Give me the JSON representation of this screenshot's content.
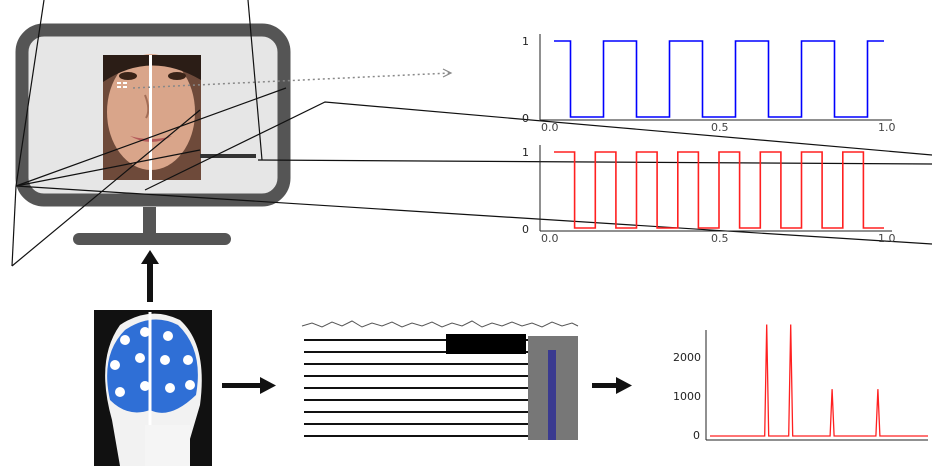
{
  "stimuli": {
    "top_signal": {
      "color": "#0000ff",
      "y_ticks": [
        "1",
        "0"
      ],
      "x_ticks": [
        "0.0",
        "0.5",
        "1.0"
      ]
    },
    "bottom_signal": {
      "color": "#ff2020",
      "y_ticks": [
        "1",
        "0"
      ],
      "x_ticks": [
        "0.0",
        "0.5",
        "1.0"
      ]
    }
  },
  "chart_data": [
    {
      "type": "line",
      "x": [
        0.0,
        0.05,
        0.05,
        0.15,
        0.15,
        0.25,
        0.25,
        0.35,
        0.35,
        0.45,
        0.45,
        0.55,
        0.55,
        0.65,
        0.65,
        0.75,
        0.75,
        0.85,
        0.85,
        0.95,
        0.95,
        1.0
      ],
      "y": [
        1,
        1,
        0,
        0,
        1,
        1,
        0,
        0,
        1,
        1,
        0,
        0,
        1,
        1,
        0,
        0,
        1,
        1,
        0,
        0,
        1,
        1
      ],
      "xlim": [
        0.0,
        1.0
      ],
      "ylim": [
        0,
        1
      ],
      "x_ticks": [
        "0.0",
        "0.5",
        "1.0"
      ],
      "y_ticks": [
        "1",
        "0"
      ],
      "color": "#0000ff"
    },
    {
      "type": "line",
      "x": [
        0.0,
        0.0625,
        0.0625,
        0.125,
        0.125,
        0.1875,
        0.1875,
        0.25,
        0.25,
        0.3125,
        0.3125,
        0.375,
        0.375,
        0.4375,
        0.4375,
        0.5,
        0.5,
        0.5625,
        0.5625,
        0.625,
        0.625,
        0.6875,
        0.6875,
        0.75,
        0.75,
        0.8125,
        0.8125,
        0.875,
        0.875,
        0.9375,
        0.9375,
        1.0
      ],
      "y": [
        1,
        1,
        0,
        0,
        1,
        1,
        0,
        0,
        1,
        1,
        0,
        0,
        1,
        1,
        0,
        0,
        1,
        1,
        0,
        0,
        1,
        1,
        0,
        0,
        1,
        1,
        0,
        0,
        1,
        1,
        0,
        0
      ],
      "xlim": [
        0.0,
        1.0
      ],
      "ylim": [
        0,
        1
      ],
      "x_ticks": [
        "0.0",
        "0.5",
        "1.0"
      ],
      "y_ticks": [
        "1",
        "0"
      ],
      "color": "#ff2020"
    },
    {
      "type": "line",
      "y_ticks": [
        "2000",
        "1000",
        "0"
      ],
      "ylim": [
        0,
        2600
      ],
      "peaks": [
        {
          "x": 0.26,
          "y": 2500
        },
        {
          "x": 0.37,
          "y": 2500
        },
        {
          "x": 0.56,
          "y": 1050
        },
        {
          "x": 0.77,
          "y": 1050
        }
      ],
      "color": "#ff2020"
    }
  ]
}
